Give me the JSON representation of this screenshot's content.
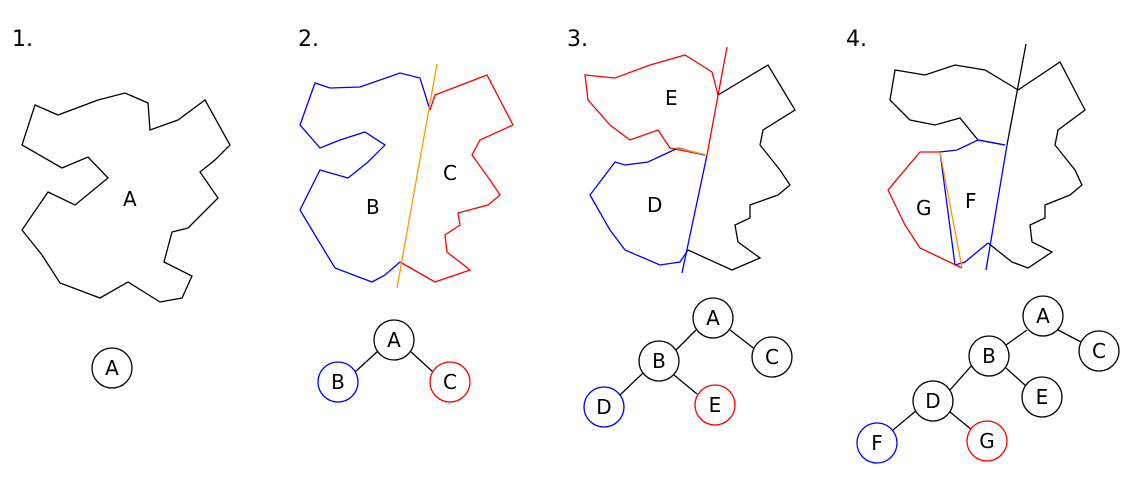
{
  "colors": {
    "black": "#000000",
    "blue": "#0000ff",
    "red": "#ff0000",
    "orange": "#ff9900"
  },
  "panels": [
    {
      "number": "1.",
      "region_labels": [
        "A"
      ],
      "tree_nodes": [
        {
          "label": "A",
          "color": "black"
        }
      ]
    },
    {
      "number": "2.",
      "region_labels": [
        "B",
        "C"
      ],
      "tree_nodes": [
        {
          "label": "A",
          "color": "black"
        },
        {
          "label": "B",
          "color": "blue"
        },
        {
          "label": "C",
          "color": "red"
        }
      ]
    },
    {
      "number": "3.",
      "region_labels": [
        "E",
        "D"
      ],
      "tree_nodes": [
        {
          "label": "A",
          "color": "black"
        },
        {
          "label": "B",
          "color": "black"
        },
        {
          "label": "C",
          "color": "black"
        },
        {
          "label": "D",
          "color": "blue"
        },
        {
          "label": "E",
          "color": "red"
        }
      ]
    },
    {
      "number": "4.",
      "region_labels": [
        "G",
        "F"
      ],
      "tree_nodes": [
        {
          "label": "A",
          "color": "black"
        },
        {
          "label": "B",
          "color": "black"
        },
        {
          "label": "C",
          "color": "black"
        },
        {
          "label": "D",
          "color": "black"
        },
        {
          "label": "E",
          "color": "black"
        },
        {
          "label": "F",
          "color": "blue"
        },
        {
          "label": "G",
          "color": "red"
        }
      ]
    }
  ]
}
